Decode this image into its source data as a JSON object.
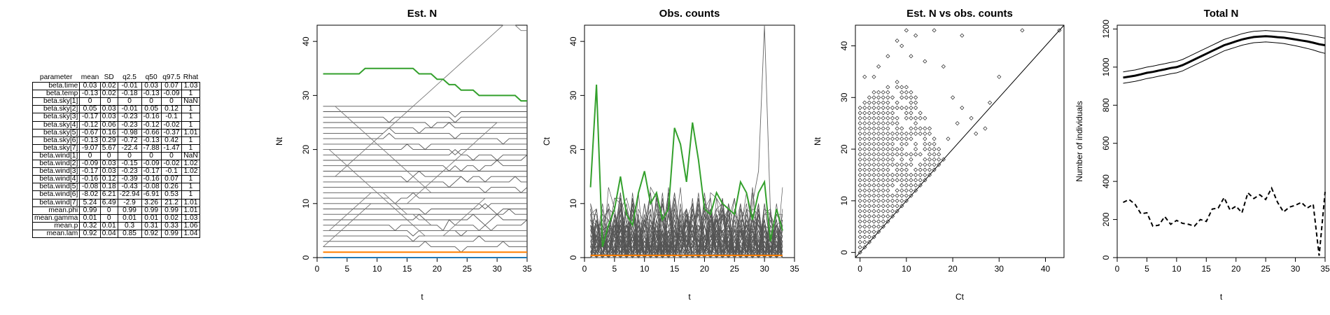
{
  "table": {
    "headers": [
      "parameter",
      "mean",
      "SD",
      "q2.5",
      "q50",
      "q97.5",
      "Rhat"
    ],
    "rows": [
      [
        "beta.time",
        "0.03",
        "0.02",
        "-0.01",
        "0.03",
        "0.07",
        "1.03"
      ],
      [
        "beta.temp",
        "-0.13",
        "0.02",
        "-0.18",
        "-0.13",
        "-0.09",
        "1"
      ],
      [
        "beta.sky[1]",
        "0",
        "0",
        "0",
        "0",
        "0",
        "NaN"
      ],
      [
        "beta.sky[2]",
        "0.05",
        "0.03",
        "-0.01",
        "0.05",
        "0.12",
        "1"
      ],
      [
        "beta.sky[3]",
        "-0.17",
        "0.03",
        "-0.23",
        "-0.16",
        "-0.1",
        "1"
      ],
      [
        "beta.sky[4]",
        "-0.12",
        "0.06",
        "-0.23",
        "-0.12",
        "-0.02",
        "1"
      ],
      [
        "beta.sky[5]",
        "-0.67",
        "0.16",
        "-0.98",
        "-0.66",
        "-0.37",
        "1.01"
      ],
      [
        "beta.sky[6]",
        "-0.13",
        "0.29",
        "-0.72",
        "-0.13",
        "0.42",
        "1"
      ],
      [
        "beta.sky[7]",
        "-9.07",
        "5.67",
        "-22.4",
        "-7.88",
        "-1.47",
        "1"
      ],
      [
        "beta.wind[1]",
        "0",
        "0",
        "0",
        "0",
        "0",
        "NaN"
      ],
      [
        "beta.wind[2]",
        "-0.09",
        "0.03",
        "-0.15",
        "-0.09",
        "-0.02",
        "1.02"
      ],
      [
        "beta.wind[3]",
        "-0.17",
        "0.03",
        "-0.23",
        "-0.17",
        "-0.1",
        "1.02"
      ],
      [
        "beta.wind[4]",
        "-0.16",
        "0.12",
        "-0.39",
        "-0.16",
        "0.07",
        "1"
      ],
      [
        "beta.wind[5]",
        "-0.08",
        "0.18",
        "-0.43",
        "-0.08",
        "0.26",
        "1"
      ],
      [
        "beta.wind[6]",
        "-8.02",
        "6.21",
        "-22.94",
        "-6.91",
        "0.53",
        "1"
      ],
      [
        "beta.wind[7]",
        "5.24",
        "6.49",
        "-2.9",
        "3.26",
        "21.2",
        "1.01"
      ],
      [
        "mean.phi",
        "0.99",
        "0",
        "0.99",
        "0.99",
        "0.99",
        "1.01"
      ],
      [
        "mean.gamma",
        "0.01",
        "0",
        "0.01",
        "0.01",
        "0.02",
        "1.03"
      ],
      [
        "mean.p",
        "0.32",
        "0.01",
        "0.3",
        "0.31",
        "0.33",
        "1.06"
      ],
      [
        "mean.lam",
        "0.92",
        "0.04",
        "0.85",
        "0.92",
        "0.99",
        "1.04"
      ]
    ]
  },
  "colors": {
    "highlight": "#33a02c",
    "baseline": "#ff7f00",
    "zero_line": "#1f78b4",
    "individual": "#555555"
  },
  "chart_data": [
    {
      "type": "line",
      "title": "Est. N",
      "xlabel": "t",
      "ylabel": "Nt",
      "xlim": [
        0,
        35
      ],
      "ylim": [
        0,
        43
      ],
      "xticks": [
        "0",
        "5",
        "10",
        "15",
        "20",
        "25",
        "30",
        "35"
      ],
      "yticks": [
        "0",
        "10",
        "20",
        "30",
        "40"
      ],
      "x": [
        1,
        2,
        3,
        4,
        5,
        6,
        7,
        8,
        9,
        10,
        11,
        12,
        13,
        14,
        15,
        16,
        17,
        18,
        19,
        20,
        21,
        22,
        23,
        24,
        25,
        26,
        27,
        28,
        29,
        30,
        31,
        32,
        33,
        34,
        35
      ],
      "highlight_series": [
        34,
        34,
        34,
        34,
        34,
        34,
        34,
        35,
        35,
        35,
        35,
        35,
        35,
        35,
        35,
        35,
        34,
        34,
        34,
        33,
        33,
        32,
        32,
        31,
        31,
        31,
        30,
        30,
        30,
        30,
        30,
        30,
        30,
        29,
        29
      ],
      "baseline_value": 1,
      "zero_value": 0,
      "grey_levels": [
        2,
        3,
        4,
        5,
        6,
        7,
        8,
        9,
        10,
        11,
        12,
        13,
        14,
        15,
        16,
        17,
        18,
        19,
        20,
        21,
        22,
        23,
        24,
        25,
        26,
        27,
        28
      ],
      "crossing_series": [
        [
          5,
          5,
          6,
          7,
          8,
          9,
          10,
          11,
          12,
          12,
          12,
          11,
          10,
          9,
          8,
          8,
          7,
          7,
          6,
          6,
          5,
          5,
          5,
          5,
          5,
          5,
          5,
          5,
          5,
          5,
          5,
          5,
          5,
          5,
          5
        ],
        [
          15,
          15,
          15,
          16,
          17,
          18,
          19,
          20,
          21,
          22,
          23,
          24,
          25,
          26,
          27,
          28,
          29,
          30,
          31,
          32,
          33,
          34,
          35,
          36,
          37,
          38,
          39,
          40,
          41,
          42,
          43,
          43,
          43,
          42,
          42
        ],
        [
          28,
          28,
          28,
          27,
          26,
          25,
          24,
          23,
          22,
          21,
          20,
          19,
          18,
          17,
          16,
          15,
          14,
          13,
          12,
          12,
          12,
          12,
          12,
          12,
          12,
          12,
          12,
          12,
          12,
          12,
          12,
          12,
          12,
          12,
          12
        ],
        [
          2,
          3,
          4,
          5,
          6,
          7,
          8,
          9,
          10,
          10,
          10,
          10,
          10,
          10,
          10,
          11,
          12,
          13,
          14,
          15,
          16,
          17,
          18,
          19,
          20,
          21,
          22,
          23,
          24,
          25,
          25,
          25,
          25,
          25,
          25
        ],
        [
          20,
          20,
          19,
          18,
          17,
          16,
          15,
          14,
          13,
          12,
          11,
          10,
          9,
          8,
          7,
          6,
          5,
          4,
          4,
          4,
          4,
          5,
          6,
          7,
          8,
          9,
          10,
          11,
          11,
          11,
          11,
          11,
          11,
          11,
          11
        ]
      ]
    },
    {
      "type": "line",
      "title": "Obs. counts",
      "xlabel": "t",
      "ylabel": "Ct",
      "xlim": [
        0,
        35
      ],
      "ylim": [
        0,
        43
      ],
      "xticks": [
        "0",
        "5",
        "10",
        "15",
        "20",
        "25",
        "30",
        "35"
      ],
      "yticks": [
        "0",
        "10",
        "20",
        "30",
        "40"
      ],
      "x": [
        1,
        2,
        3,
        4,
        5,
        6,
        7,
        8,
        9,
        10,
        11,
        12,
        13,
        14,
        15,
        16,
        17,
        18,
        19,
        20,
        21,
        22,
        23,
        24,
        25,
        26,
        27,
        28,
        29,
        30,
        31,
        32,
        33
      ],
      "highlight_series": [
        13,
        32,
        2,
        6,
        9,
        15,
        8,
        6,
        12,
        16,
        10,
        12,
        7,
        9,
        24,
        21,
        14,
        25,
        18,
        9,
        8,
        12,
        10,
        9,
        8,
        14,
        12,
        7,
        12,
        14,
        3,
        9,
        5
      ],
      "baseline_value": 0.4,
      "spike_series": [
        2,
        3,
        4,
        5,
        3,
        2,
        3,
        4,
        5,
        6,
        3,
        2,
        4,
        3,
        5,
        6,
        4,
        3,
        5,
        8,
        6,
        4,
        3,
        6,
        5,
        4,
        3,
        10,
        16,
        43,
        8,
        5,
        4
      ]
    },
    {
      "type": "scatter",
      "title": "Est. N vs obs. counts",
      "xlabel": "Ct",
      "ylabel": "Nt",
      "xlim": [
        -1,
        44
      ],
      "ylim": [
        -1,
        44
      ],
      "xticks": [
        "0",
        "10",
        "20",
        "30",
        "40"
      ],
      "yticks": [
        "0",
        "10",
        "20",
        "30",
        "40"
      ],
      "reference_line": "y=x",
      "extra_points": [
        [
          10,
          43
        ],
        [
          12,
          42
        ],
        [
          16,
          43
        ],
        [
          22,
          42
        ],
        [
          8,
          41
        ],
        [
          4,
          36
        ],
        [
          6,
          38
        ],
        [
          11,
          38
        ],
        [
          18,
          36
        ],
        [
          14,
          37
        ],
        [
          1,
          34
        ],
        [
          3,
          34
        ],
        [
          20,
          30
        ],
        [
          22,
          28
        ],
        [
          24,
          26
        ],
        [
          25,
          23
        ],
        [
          27,
          24
        ],
        [
          28,
          29
        ],
        [
          30,
          34
        ],
        [
          35,
          43
        ],
        [
          43,
          43
        ],
        [
          19,
          22
        ],
        [
          21,
          25
        ],
        [
          9,
          40
        ]
      ]
    },
    {
      "type": "line",
      "title": "Total N",
      "xlabel": "t",
      "ylabel": "Number of individuals",
      "xlim": [
        0,
        35
      ],
      "ylim": [
        0,
        1220
      ],
      "xticks": [
        "0",
        "5",
        "10",
        "15",
        "20",
        "25",
        "30",
        "35"
      ],
      "yticks": [
        "0",
        "200",
        "400",
        "600",
        "800",
        "1000",
        "1200"
      ],
      "x": [
        1,
        2,
        3,
        4,
        5,
        6,
        7,
        8,
        9,
        10,
        11,
        12,
        13,
        14,
        15,
        16,
        17,
        18,
        19,
        20,
        21,
        22,
        23,
        24,
        25,
        26,
        27,
        28,
        29,
        30,
        31,
        32,
        33,
        34,
        35
      ],
      "mean": [
        945,
        950,
        955,
        962,
        970,
        975,
        982,
        988,
        995,
        1000,
        1010,
        1025,
        1040,
        1055,
        1070,
        1085,
        1100,
        1115,
        1125,
        1135,
        1145,
        1152,
        1158,
        1160,
        1162,
        1160,
        1157,
        1155,
        1150,
        1145,
        1140,
        1135,
        1128,
        1120,
        1115
      ],
      "lower": [
        915,
        920,
        925,
        932,
        940,
        945,
        952,
        958,
        965,
        970,
        980,
        995,
        1010,
        1025,
        1040,
        1055,
        1070,
        1085,
        1095,
        1105,
        1115,
        1122,
        1128,
        1130,
        1132,
        1130,
        1127,
        1124,
        1118,
        1112,
        1105,
        1098,
        1090,
        1080,
        1072
      ],
      "upper": [
        975,
        980,
        985,
        992,
        1000,
        1005,
        1012,
        1018,
        1025,
        1030,
        1040,
        1055,
        1070,
        1085,
        1100,
        1115,
        1130,
        1145,
        1155,
        1165,
        1175,
        1182,
        1188,
        1190,
        1192,
        1190,
        1188,
        1186,
        1182,
        1178,
        1174,
        1170,
        1164,
        1158,
        1152
      ],
      "observed": [
        290,
        305,
        280,
        230,
        235,
        165,
        170,
        215,
        175,
        195,
        180,
        175,
        165,
        200,
        190,
        255,
        260,
        315,
        250,
        270,
        235,
        340,
        310,
        330,
        305,
        365,
        290,
        240,
        265,
        275,
        290,
        260,
        280,
        10,
        345
      ]
    }
  ]
}
